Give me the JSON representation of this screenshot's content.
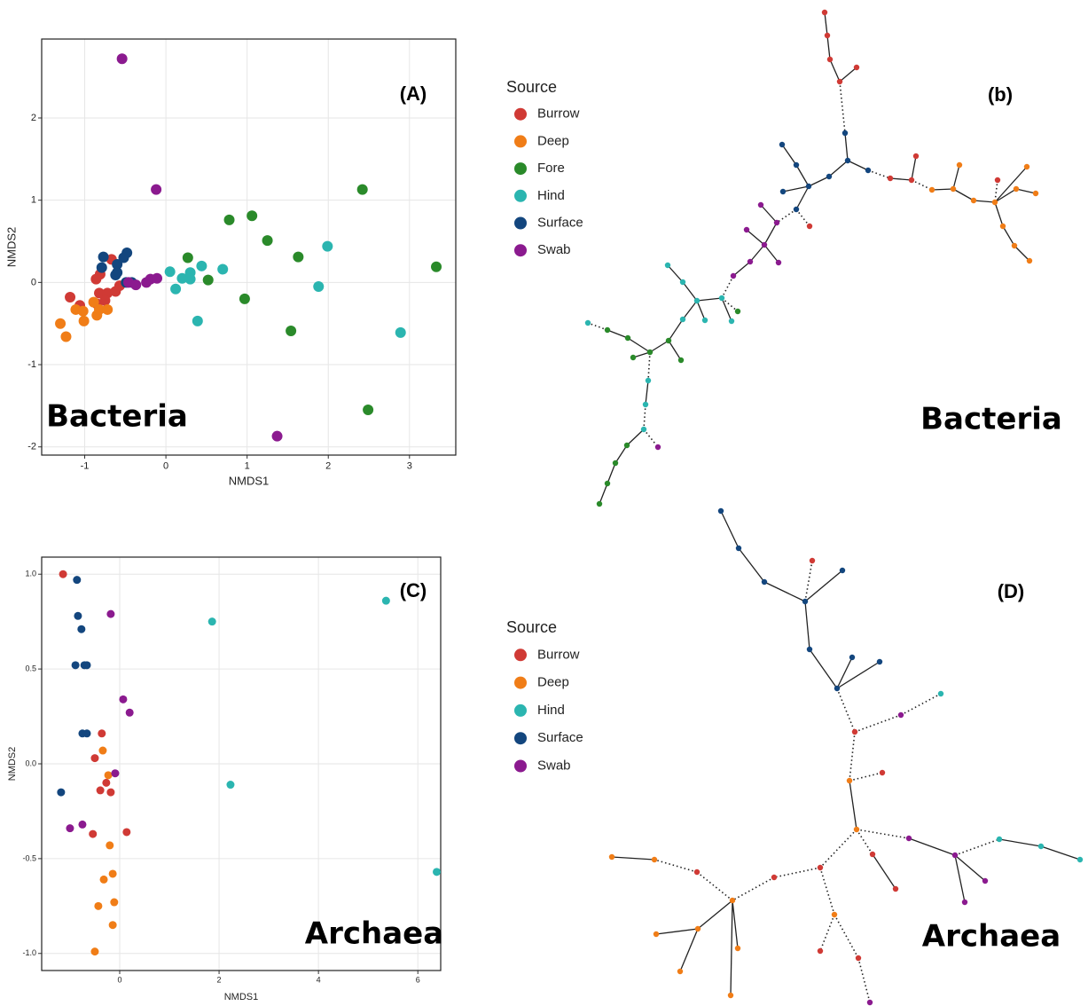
{
  "chart_data": [
    {
      "type": "scatter",
      "label": "(A)",
      "caption": "Bacteria",
      "x_label": "NMDS1",
      "y_label": "NMDS2",
      "xlim": [
        -1.53,
        3.57
      ],
      "ylim": [
        -2.1,
        2.96
      ],
      "xticks": [
        -1,
        0,
        1,
        2,
        3
      ],
      "yticks": [
        -2,
        -1,
        0,
        1,
        2
      ],
      "grid": true,
      "legend_title": "Source",
      "series": [
        {
          "name": "Burrow",
          "color": "#d03a35",
          "x": [
            -1.18,
            -1.06,
            -0.86,
            -0.81,
            -0.67,
            -0.82,
            -0.72,
            -0.62,
            -0.75,
            -0.85,
            -0.57
          ],
          "y": [
            -0.18,
            -0.28,
            0.04,
            0.1,
            0.28,
            -0.13,
            -0.13,
            -0.11,
            -0.22,
            -0.26,
            -0.04
          ]
        },
        {
          "name": "Deep",
          "color": "#f07d17",
          "x": [
            -1.3,
            -1.23,
            -1.11,
            -1.02,
            -1.01,
            -0.89,
            -0.85,
            -0.82,
            -0.72
          ],
          "y": [
            -0.5,
            -0.66,
            -0.33,
            -0.35,
            -0.47,
            -0.24,
            -0.4,
            -0.33,
            -0.33
          ]
        },
        {
          "name": "Fore",
          "color": "#2a8a2a",
          "x": [
            2.42,
            0.78,
            1.06,
            1.25,
            1.63,
            0.27,
            0.52,
            0.97,
            1.54,
            2.49,
            3.33
          ],
          "y": [
            1.13,
            0.76,
            0.81,
            0.51,
            0.31,
            0.3,
            0.03,
            -0.2,
            -0.59,
            -1.55,
            0.19
          ]
        },
        {
          "name": "Hind",
          "color": "#2bb5b0",
          "x": [
            1.99,
            1.88,
            2.89,
            0.39,
            0.05,
            0.12,
            0.2,
            0.3,
            0.3,
            0.44,
            0.7
          ],
          "y": [
            0.44,
            -0.05,
            -0.61,
            -0.47,
            0.13,
            -0.08,
            0.05,
            0.12,
            0.04,
            0.2,
            0.16
          ]
        },
        {
          "name": "Surface",
          "color": "#13467e",
          "x": [
            -0.77,
            -0.79,
            -0.6,
            -0.48,
            -0.52,
            -0.6,
            -0.62,
            -0.49,
            -0.42
          ],
          "y": [
            0.31,
            0.18,
            0.22,
            0.36,
            0.3,
            0.12,
            0.09,
            0,
            0
          ]
        },
        {
          "name": "Swab",
          "color": "#8b1a8f",
          "x": [
            -0.54,
            -0.12,
            1.37,
            -0.46,
            -0.37,
            -0.24,
            -0.19,
            -0.11
          ],
          "y": [
            2.72,
            1.13,
            -1.87,
            0,
            -0.03,
            0,
            0.04,
            0.05
          ]
        }
      ]
    },
    {
      "type": "scatter",
      "label": "(C)",
      "caption": "Archaea",
      "x_label": "NMDS1",
      "y_label": "NMDS2",
      "xlim": [
        -1.57,
        6.46
      ],
      "ylim": [
        -1.09,
        1.09
      ],
      "xticks": [
        0,
        2,
        4,
        6
      ],
      "yticks": [
        {
          "value": -1,
          "label": "-1.0"
        },
        -0.5,
        {
          "value": 0,
          "label": "0.0"
        },
        0.5,
        {
          "value": 1,
          "label": "1.0"
        }
      ],
      "grid": true,
      "legend_title": "Source",
      "series": [
        {
          "name": "Burrow",
          "color": "#d03a35",
          "x": [
            -1.14,
            -0.36,
            -0.5,
            -0.27,
            -0.39,
            -0.18,
            0.14,
            -0.54
          ],
          "y": [
            1.0,
            0.16,
            0.03,
            -0.1,
            -0.14,
            -0.15,
            -0.36,
            -0.37
          ]
        },
        {
          "name": "Deep",
          "color": "#f07d17",
          "x": [
            -0.34,
            -0.23,
            -0.2,
            -0.14,
            -0.32,
            -0.11,
            -0.43,
            -0.14,
            -0.5
          ],
          "y": [
            0.07,
            -0.06,
            -0.43,
            -0.58,
            -0.61,
            -0.73,
            -0.75,
            -0.85,
            -0.99
          ]
        },
        {
          "name": "Hind",
          "color": "#2bb5b0",
          "x": [
            5.36,
            1.86,
            2.23,
            6.38
          ],
          "y": [
            0.86,
            0.75,
            -0.11,
            -0.57
          ]
        },
        {
          "name": "Surface",
          "color": "#13467e",
          "x": [
            -0.86,
            -0.84,
            -0.77,
            -0.89,
            -0.71,
            -0.66,
            -0.75,
            -0.66,
            -1.18
          ],
          "y": [
            0.97,
            0.78,
            0.71,
            0.52,
            0.52,
            0.52,
            0.16,
            0.16,
            -0.15
          ]
        },
        {
          "name": "Swab",
          "color": "#8b1a8f",
          "x": [
            -0.18,
            0.07,
            0.2,
            -0.09,
            -1.0,
            -0.75
          ],
          "y": [
            0.79,
            0.34,
            0.27,
            -0.05,
            -0.34,
            -0.32
          ]
        }
      ]
    }
  ],
  "diagrams": [
    {
      "label": "(b)",
      "caption": "Bacteria"
    },
    {
      "label": "(D)",
      "caption": "Archaea"
    }
  ]
}
